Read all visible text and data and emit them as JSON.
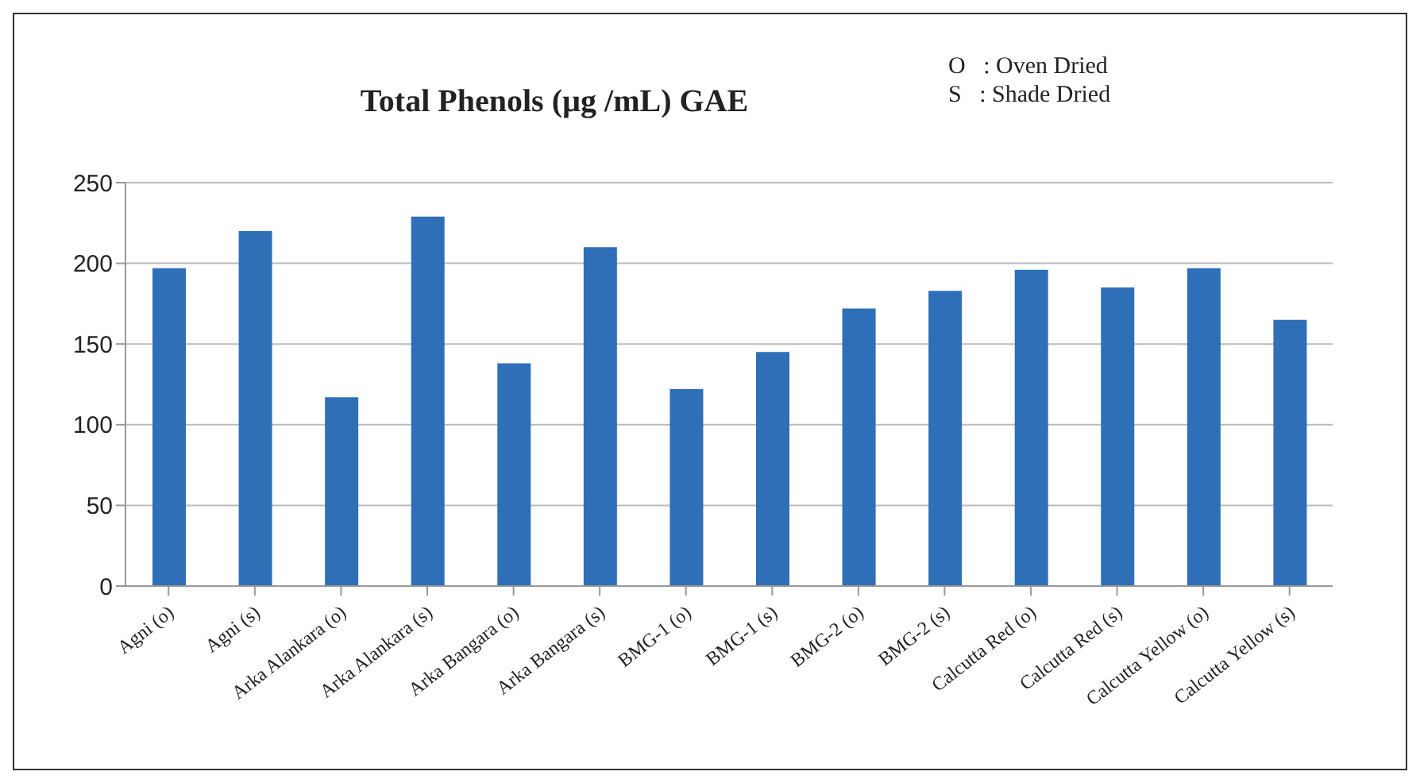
{
  "chart_data": {
    "type": "bar",
    "title": "Total Phenols (µg /mL) GAE",
    "annotations": [
      "O   : Oven Dried",
      "S   : Shade Dried"
    ],
    "categories": [
      "Agni (o)",
      "Agni (s)",
      "Arka Alankara (o)",
      "Arka Alankara (s)",
      "Arka Bangara (o)",
      "Arka Bangara (s)",
      "BMG-1 (o)",
      "BMG-1 (s)",
      "BMG-2 (o)",
      "BMG-2 (s)",
      "Calcutta Red (o)",
      "Calcutta Red (s)",
      "Calcutta Yellow (o)",
      "Calcutta Yellow (s)"
    ],
    "values": [
      197,
      220,
      117,
      229,
      138,
      210,
      122,
      145,
      172,
      183,
      196,
      185,
      197,
      165
    ],
    "color": "#2e6fb7",
    "ylim": [
      0,
      250
    ],
    "yticks": [
      0,
      50,
      100,
      150,
      200,
      250
    ],
    "grid": "y"
  }
}
